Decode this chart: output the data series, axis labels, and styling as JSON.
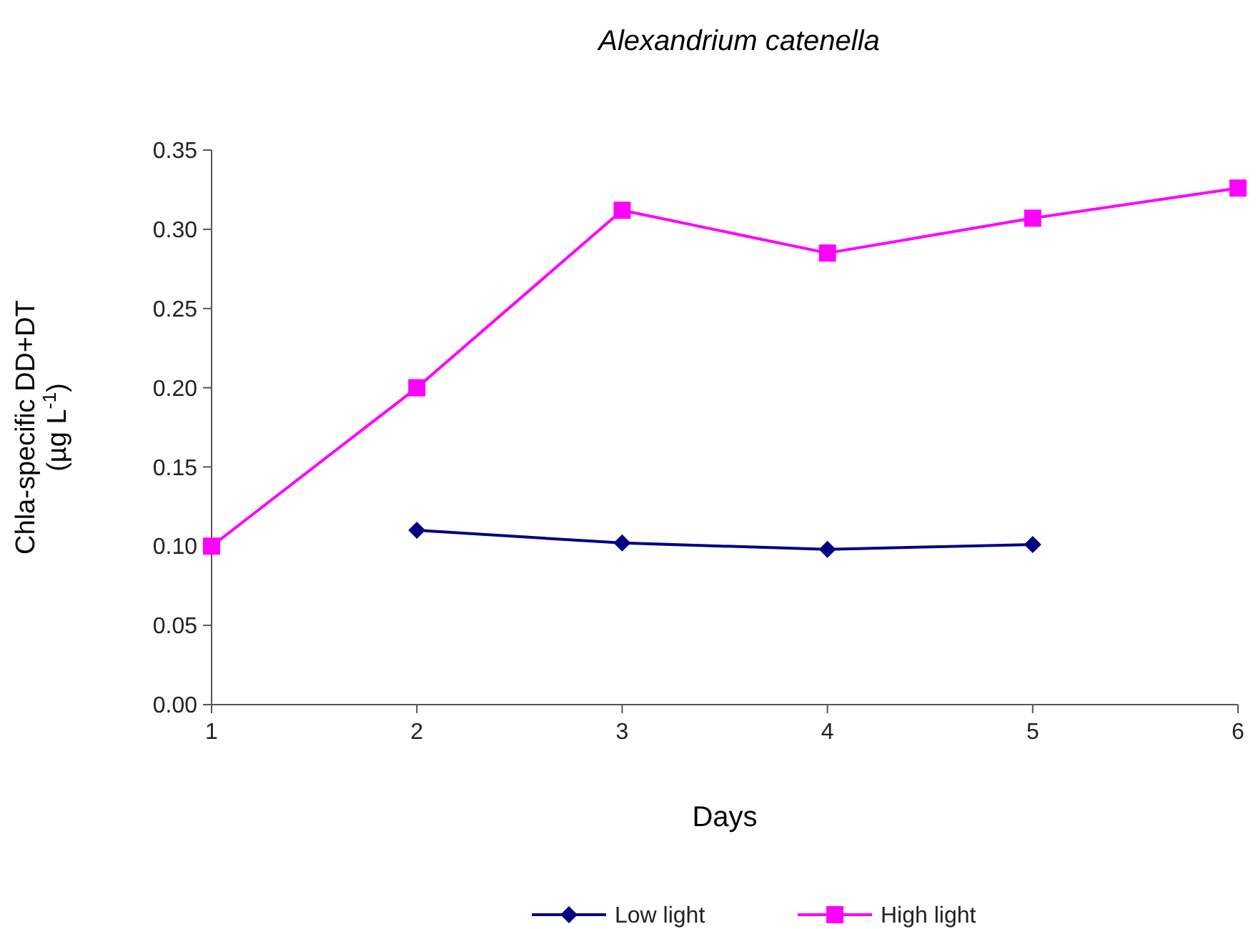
{
  "chart_data": {
    "type": "line",
    "title": "Alexandrium catenella",
    "xlabel": "Days",
    "ylabel": "Chla-specific DD+DT\n(µg L$^{-1}$)",
    "x": [
      1,
      2,
      3,
      4,
      5,
      6
    ],
    "series": [
      {
        "name": "Low light",
        "color": "#000080",
        "marker": "diamond",
        "values": [
          null,
          0.11,
          0.102,
          0.098,
          0.101,
          null
        ]
      },
      {
        "name": "High light",
        "color": "#ff00ff",
        "marker": "square",
        "values": [
          0.1,
          0.2,
          0.312,
          0.285,
          0.307,
          0.326
        ]
      }
    ],
    "xlim": [
      1,
      6
    ],
    "xticks": [
      1,
      2,
      3,
      4,
      5,
      6
    ],
    "ylim": [
      0,
      0.35
    ],
    "yticks": [
      {
        "value": 0,
        "label": "0.00"
      },
      {
        "value": 0.05,
        "label": "0.05"
      },
      {
        "value": 0.1,
        "label": "0.10"
      },
      {
        "value": 0.15,
        "label": "0.15"
      },
      {
        "value": 0.2,
        "label": "0.20"
      },
      {
        "value": 0.25,
        "label": "0.25"
      },
      {
        "value": 0.3,
        "label": "0.30"
      },
      {
        "value": 0.35,
        "label": "0.35"
      }
    ],
    "grid": false,
    "legend": "bottom",
    "line_style": "solid"
  }
}
